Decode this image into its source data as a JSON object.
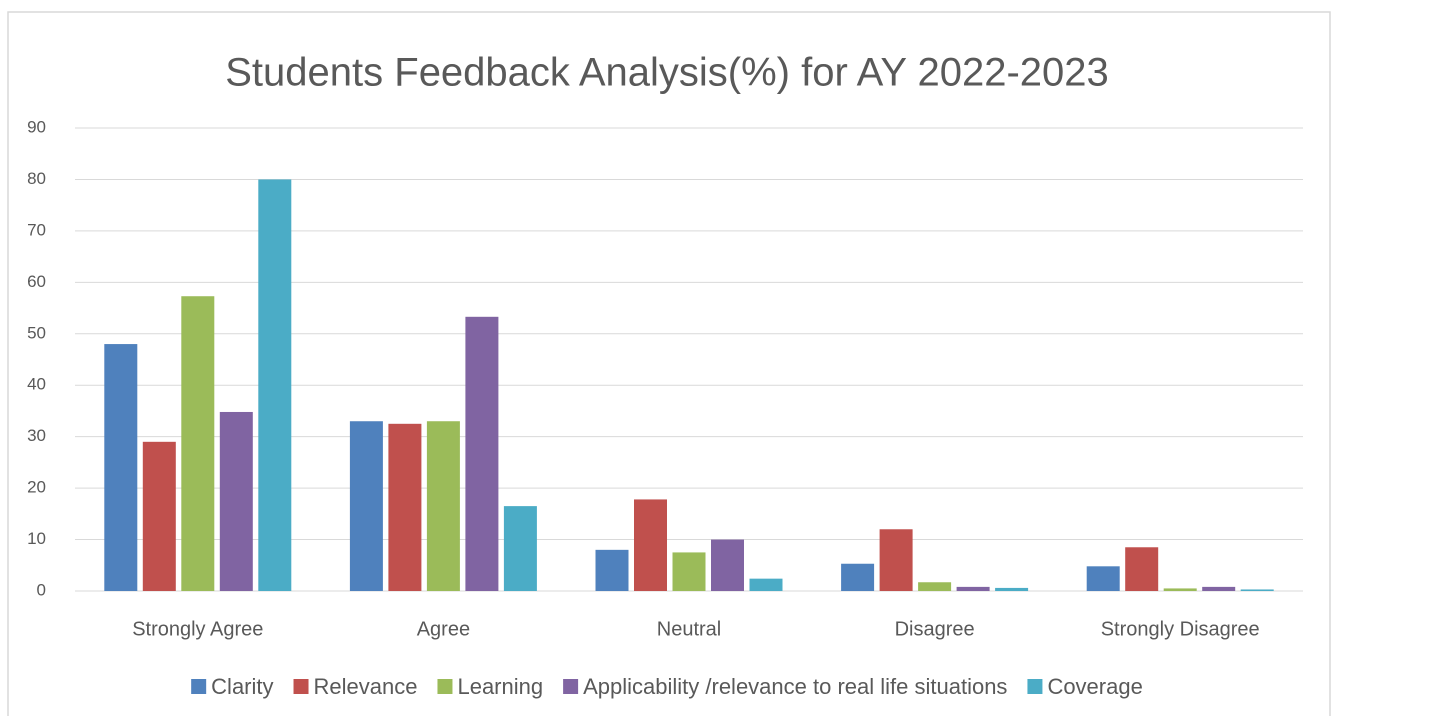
{
  "chart_data": {
    "type": "bar",
    "title": "Students Feedback Analysis(%) for AY 2022-2023",
    "categories": [
      "Strongly Agree",
      "Agree",
      "Neutral",
      "Disagree",
      "Strongly Disagree"
    ],
    "series": [
      {
        "name": "Clarity",
        "color": "#4f81bd",
        "values": [
          48,
          33,
          8,
          5.3,
          4.8
        ]
      },
      {
        "name": "Relevance",
        "color": "#c0504d",
        "values": [
          29,
          32.5,
          17.8,
          12,
          8.5
        ]
      },
      {
        "name": "Learning",
        "color": "#9bbb59",
        "values": [
          57.3,
          33,
          7.5,
          1.7,
          0.5
        ]
      },
      {
        "name": "Applicability /relevance to real life situations",
        "color": "#8064a2",
        "values": [
          34.8,
          53.3,
          10,
          0.8,
          0.8
        ]
      },
      {
        "name": "Coverage",
        "color": "#4bacc6",
        "values": [
          80,
          16.5,
          2.4,
          0.6,
          0.3
        ]
      }
    ],
    "ylim": [
      0,
      90
    ],
    "yticks": [
      0,
      10,
      20,
      30,
      40,
      50,
      60,
      70,
      80,
      90
    ],
    "grid": true,
    "legend": "bottom"
  }
}
